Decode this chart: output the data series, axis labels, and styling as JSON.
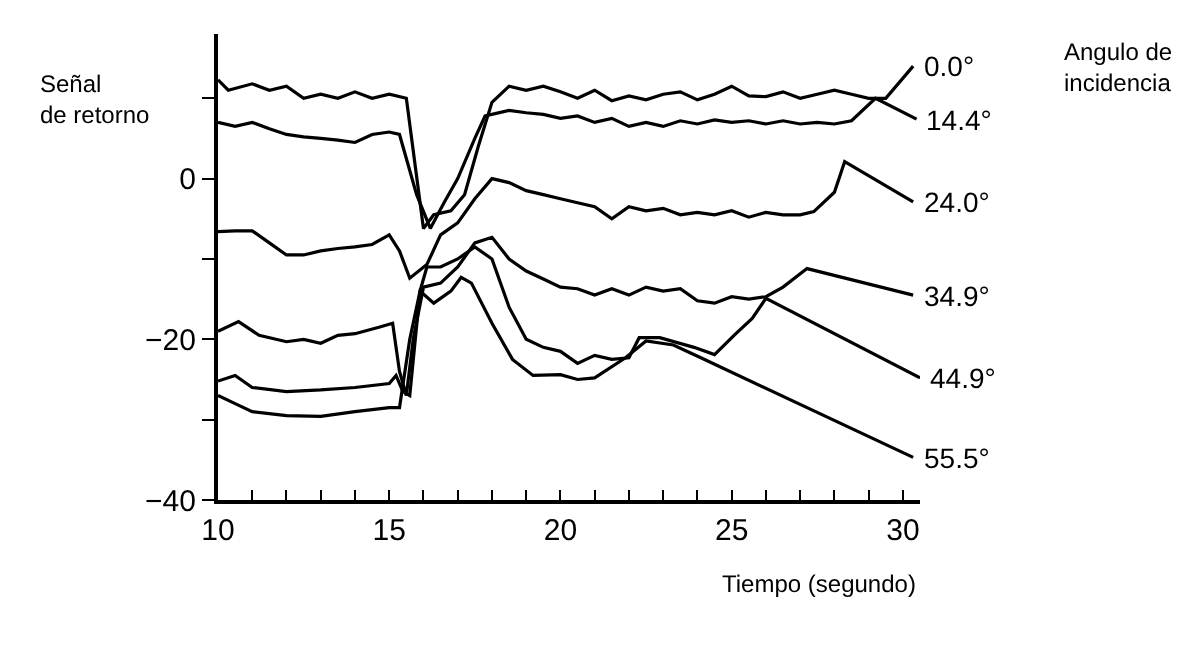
{
  "chart_data": {
    "type": "line",
    "ylabel": "Señal\nde retorno",
    "xlabel": "Tiempo (segundo)",
    "legend_title": "Angulo de\nincidencia",
    "xlim": [
      10,
      30.5
    ],
    "ylim": [
      -40,
      18
    ],
    "xticks": [
      10,
      {
        "value": 11,
        "label": null
      },
      {
        "value": 12,
        "label": null
      },
      {
        "value": 13,
        "label": null
      },
      {
        "value": 14,
        "label": null
      },
      15,
      {
        "value": 16,
        "label": null
      },
      {
        "value": 17,
        "label": null
      },
      {
        "value": 18,
        "label": null
      },
      {
        "value": 19,
        "label": null
      },
      20,
      {
        "value": 21,
        "label": null
      },
      {
        "value": 22,
        "label": null
      },
      {
        "value": 23,
        "label": null
      },
      {
        "value": 24,
        "label": null
      },
      25,
      {
        "value": 26,
        "label": null
      },
      {
        "value": 27,
        "label": null
      },
      {
        "value": 28,
        "label": null
      },
      {
        "value": 29,
        "label": null
      },
      30
    ],
    "yticks": [
      -40,
      {
        "value": -30,
        "label": null
      },
      -20,
      {
        "value": -10,
        "label": null
      },
      0,
      {
        "value": 10,
        "label": null
      }
    ],
    "legend": false,
    "marker": "none",
    "line_style": "solid",
    "series": [
      {
        "name": "0.0°",
        "color": "#000000",
        "x": [
          10,
          10.3,
          11,
          11.5,
          12,
          12.5,
          13,
          13.5,
          14,
          14.5,
          15,
          15.5,
          16,
          16.3,
          16.8,
          17.2,
          17.6,
          18,
          18.5,
          19,
          19.5,
          20,
          20.5,
          21,
          21.5,
          22,
          22.5,
          23,
          23.5,
          24,
          24.5,
          25,
          25.5,
          26,
          26.5,
          27,
          27.5,
          28,
          28.5,
          29,
          29.5,
          30.3
        ],
        "values": [
          12.3,
          11,
          11.8,
          11,
          11.5,
          10,
          10.5,
          10,
          10.8,
          10,
          10.5,
          10,
          -6.2,
          -4.5,
          -4,
          -2,
          4,
          9.5,
          11.5,
          11,
          11.5,
          10.8,
          10,
          11,
          9.7,
          10.3,
          9.8,
          10.5,
          10.8,
          9.8,
          10.5,
          11.5,
          10.3,
          10.2,
          10.8,
          10,
          10.5,
          11,
          10.5,
          10,
          10,
          14
        ]
      },
      {
        "name": "14.4°",
        "color": "#000000",
        "x": [
          10,
          10.5,
          11,
          11.5,
          12,
          12.5,
          13,
          13.5,
          14,
          14.5,
          15,
          15.3,
          15.8,
          16.2,
          16.6,
          17,
          17.5,
          17.8,
          18.5,
          19,
          19.5,
          20,
          20.5,
          21,
          21.5,
          22,
          22.5,
          23,
          23.5,
          24,
          24.5,
          25,
          25.5,
          26,
          26.5,
          27,
          27.5,
          28,
          28.5,
          29.2,
          30.4
        ],
        "values": [
          7,
          6.5,
          7,
          6.2,
          5.5,
          5.2,
          5,
          4.8,
          4.5,
          5.5,
          5.8,
          5.5,
          -2,
          -6.2,
          -3,
          0,
          5,
          7.8,
          8.5,
          8.2,
          8,
          7.5,
          7.8,
          7,
          7.5,
          6.5,
          7,
          6.5,
          7.2,
          6.8,
          7.3,
          7,
          7.2,
          6.8,
          7.2,
          6.8,
          7,
          6.8,
          7.2,
          10,
          7.4
        ]
      },
      {
        "name": "24.0°",
        "color": "#000000",
        "x": [
          10,
          10.5,
          11,
          11.5,
          12,
          12.5,
          13,
          13.5,
          14,
          14.5,
          15,
          15.3,
          15.6,
          16.1,
          16.5,
          17,
          17.5,
          18,
          18.5,
          19,
          19.5,
          20,
          20.5,
          21,
          21.5,
          22,
          22.5,
          23,
          23.5,
          24,
          24.5,
          25,
          25.5,
          26,
          26.5,
          27,
          27.4,
          28,
          28.3,
          30.3
        ],
        "values": [
          -6.6,
          -6.5,
          -6.5,
          -8,
          -9.5,
          -9.5,
          -9,
          -8.7,
          -8.5,
          -8.2,
          -7,
          -9,
          -12.4,
          -10.7,
          -7,
          -5.5,
          -2.5,
          0,
          -0.5,
          -1.5,
          -2,
          -2.5,
          -3,
          -3.5,
          -5,
          -3.5,
          -4,
          -3.7,
          -4.5,
          -4.2,
          -4.5,
          -4,
          -4.8,
          -4.2,
          -4.5,
          -4.5,
          -4.1,
          -1.7,
          2.1,
          -2.9
        ]
      },
      {
        "name": "34.9°",
        "color": "#000000",
        "x": [
          10,
          10.6,
          11.2,
          12,
          12.5,
          13,
          13.5,
          14,
          14.7,
          15.1,
          15.3,
          15.5,
          15.7,
          16,
          16.5,
          17,
          17.5,
          18,
          18.5,
          19,
          19.5,
          20,
          20.5,
          21,
          21.5,
          22,
          22.5,
          23,
          23.5,
          24,
          24.5,
          25,
          25.5,
          26,
          26.5,
          27.2,
          30.3
        ],
        "values": [
          -19,
          -17.8,
          -19.5,
          -20.3,
          -20,
          -20.5,
          -19.5,
          -19.3,
          -18.5,
          -18,
          -24,
          -27,
          -20,
          -13.5,
          -13,
          -11,
          -8,
          -7.3,
          -10,
          -11.5,
          -12.5,
          -13.5,
          -13.7,
          -14.5,
          -13.7,
          -14.5,
          -13.5,
          -14,
          -13.7,
          -15.2,
          -15.5,
          -14.7,
          -15,
          -14.7,
          -13.5,
          -11.2,
          -14.5
        ]
      },
      {
        "name": "44.9°",
        "color": "#000000",
        "x": [
          10,
          10.5,
          11,
          12,
          13,
          14,
          15,
          15.2,
          15.4,
          15.6,
          15.9,
          16.1,
          16.5,
          17,
          17.5,
          18,
          18.5,
          19,
          19.5,
          20,
          20.5,
          21,
          21.5,
          22,
          22.3,
          22.9,
          23.9,
          24.5,
          25.1,
          25.6,
          26,
          30.5
        ],
        "values": [
          -25.2,
          -24.5,
          -26,
          -26.5,
          -26.3,
          -26,
          -25.5,
          -24.5,
          -26.5,
          -27,
          -14,
          -11,
          -11,
          -10,
          -8.5,
          -10,
          -16,
          -20,
          -21,
          -21.5,
          -23,
          -22,
          -22.5,
          -22.3,
          -19.8,
          -19.8,
          -21,
          -21.9,
          -19.4,
          -17.4,
          -14.9,
          -24.8
        ]
      },
      {
        "name": "55.5°",
        "color": "#000000",
        "x": [
          10,
          10.5,
          11,
          12,
          13,
          14,
          15,
          15.3,
          15.6,
          15.9,
          16.3,
          16.8,
          17.1,
          17.4,
          18,
          18.6,
          19.2,
          20,
          20.5,
          21,
          21.9,
          22.5,
          23.3,
          24.1,
          30.3
        ],
        "values": [
          -27,
          -28,
          -29,
          -29.5,
          -29.6,
          -29,
          -28.5,
          -28.5,
          -20,
          -14,
          -15.5,
          -14,
          -12.3,
          -13,
          -18,
          -22.5,
          -24.5,
          -24.4,
          -25,
          -24.8,
          -22.3,
          -20.2,
          -20.7,
          -22.3,
          -34.7
        ]
      }
    ]
  }
}
